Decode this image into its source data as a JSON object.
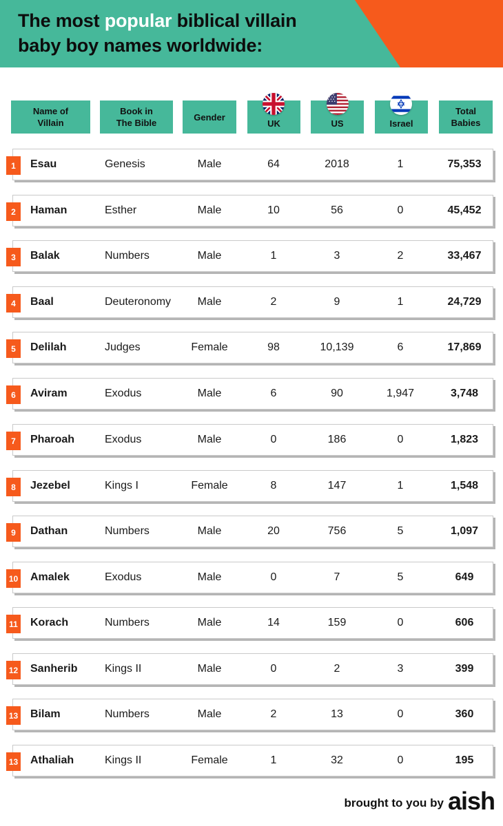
{
  "header": {
    "title_pre": "The most ",
    "title_highlight": "popular",
    "title_post_line1": " biblical villain",
    "title_line2": "baby boy names worldwide:"
  },
  "columns": {
    "name": "Name of Villain",
    "book": "Book in The Bible",
    "gender": "Gender",
    "uk": "UK",
    "us": "US",
    "israel": "Israel",
    "total": "Total Babies"
  },
  "rows": [
    {
      "rank": "1",
      "name": "Esau",
      "book": "Genesis",
      "gender": "Male",
      "uk": "64",
      "us": "2018",
      "israel": "1",
      "total": "75,353"
    },
    {
      "rank": "2",
      "name": "Haman",
      "book": "Esther",
      "gender": "Male",
      "uk": "10",
      "us": "56",
      "israel": "0",
      "total": "45,452"
    },
    {
      "rank": "3",
      "name": "Balak",
      "book": "Numbers",
      "gender": "Male",
      "uk": "1",
      "us": "3",
      "israel": "2",
      "total": "33,467"
    },
    {
      "rank": "4",
      "name": "Baal",
      "book": "Deuteronomy",
      "gender": "Male",
      "uk": "2",
      "us": "9",
      "israel": "1",
      "total": "24,729"
    },
    {
      "rank": "5",
      "name": "Delilah",
      "book": "Judges",
      "gender": "Female",
      "uk": "98",
      "us": "10,139",
      "israel": "6",
      "total": "17,869"
    },
    {
      "rank": "6",
      "name": "Aviram",
      "book": "Exodus",
      "gender": "Male",
      "uk": "6",
      "us": "90",
      "israel": "1,947",
      "total": "3,748"
    },
    {
      "rank": "7",
      "name": "Pharoah",
      "book": "Exodus",
      "gender": "Male",
      "uk": "0",
      "us": "186",
      "israel": "0",
      "total": "1,823"
    },
    {
      "rank": "8",
      "name": "Jezebel",
      "book": "Kings I",
      "gender": "Female",
      "uk": "8",
      "us": "147",
      "israel": "1",
      "total": "1,548"
    },
    {
      "rank": "9",
      "name": "Dathan",
      "book": "Numbers",
      "gender": "Male",
      "uk": "20",
      "us": "756",
      "israel": "5",
      "total": "1,097"
    },
    {
      "rank": "10",
      "name": "Amalek",
      "book": "Exodus",
      "gender": "Male",
      "uk": "0",
      "us": "7",
      "israel": "5",
      "total": "649"
    },
    {
      "rank": "11",
      "name": "Korach",
      "book": "Numbers",
      "gender": "Male",
      "uk": "14",
      "us": "159",
      "israel": "0",
      "total": "606"
    },
    {
      "rank": "12",
      "name": "Sanherib",
      "book": "Kings II",
      "gender": "Male",
      "uk": "0",
      "us": "2",
      "israel": "3",
      "total": "399"
    },
    {
      "rank": "13",
      "name": "Bilam",
      "book": "Numbers",
      "gender": "Male",
      "uk": "2",
      "us": "13",
      "israel": "0",
      "total": "360"
    },
    {
      "rank": "13",
      "name": "Athaliah",
      "book": "Kings II",
      "gender": "Female",
      "uk": "1",
      "us": "32",
      "israel": "0",
      "total": "195"
    }
  ],
  "footer": {
    "brought_by": "brought to you by",
    "logo": "aish"
  },
  "colors": {
    "teal": "#46b89a",
    "orange": "#f65a1c"
  },
  "icons": [
    "uk-flag-icon",
    "us-flag-icon",
    "israel-flag-icon"
  ]
}
